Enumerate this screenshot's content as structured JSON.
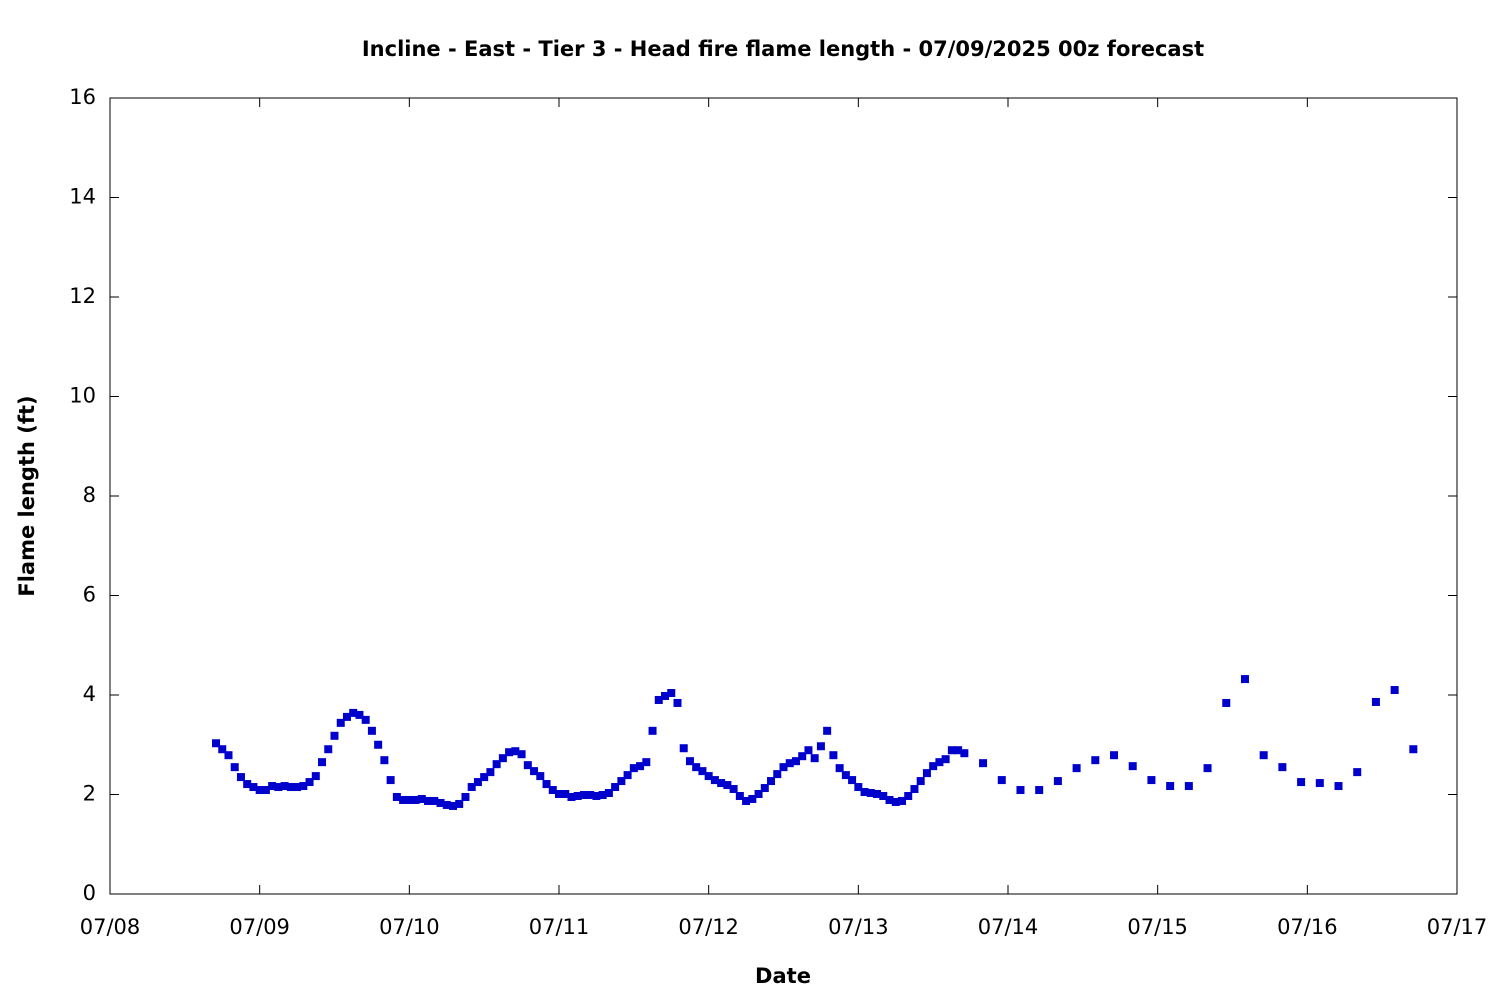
{
  "chart_data": {
    "type": "scatter",
    "title": "Incline - East - Tier 3 - Head fire flame length - 07/09/2025 00z forecast",
    "xlabel": "Date",
    "ylabel": "Flame length (ft)",
    "xlim": [
      0,
      216
    ],
    "ylim": [
      0,
      16
    ],
    "xticks": [
      {
        "value": 0,
        "label": "07/08"
      },
      {
        "value": 24,
        "label": "07/09"
      },
      {
        "value": 48,
        "label": "07/10"
      },
      {
        "value": 72,
        "label": "07/11"
      },
      {
        "value": 96,
        "label": "07/12"
      },
      {
        "value": 120,
        "label": "07/13"
      },
      {
        "value": 144,
        "label": "07/14"
      },
      {
        "value": 168,
        "label": "07/15"
      },
      {
        "value": 192,
        "label": "07/16"
      },
      {
        "value": 216,
        "label": "07/17"
      }
    ],
    "yticks": [
      0,
      2,
      4,
      6,
      8,
      10,
      12,
      14,
      16
    ],
    "color": "#0000cc",
    "x": [
      17,
      18,
      19,
      20,
      21,
      22,
      23,
      24,
      25,
      26,
      27,
      28,
      29,
      30,
      31,
      32,
      33,
      34,
      35,
      36,
      37,
      38,
      39,
      40,
      41,
      42,
      43,
      44,
      45,
      46,
      47,
      48,
      49,
      50,
      51,
      52,
      53,
      54,
      55,
      56,
      57,
      58,
      59,
      60,
      61,
      62,
      63,
      64,
      65,
      66,
      67,
      68,
      69,
      70,
      71,
      72,
      73,
      74,
      75,
      76,
      77,
      78,
      79,
      80,
      81,
      82,
      83,
      84,
      85,
      86,
      87,
      88,
      89,
      90,
      91,
      92,
      93,
      94,
      95,
      96,
      97,
      98,
      99,
      100,
      101,
      102,
      103,
      104,
      105,
      106,
      107,
      108,
      109,
      110,
      111,
      112,
      113,
      114,
      115,
      116,
      117,
      118,
      119,
      120,
      121,
      122,
      123,
      124,
      125,
      126,
      127,
      128,
      129,
      130,
      131,
      132,
      133,
      134,
      135,
      136,
      137,
      140,
      143,
      146,
      149,
      152,
      155,
      158,
      161,
      164,
      167,
      170,
      173,
      176,
      179,
      182,
      185,
      188,
      191,
      194,
      197,
      200,
      203,
      206,
      209
    ],
    "values": [
      3.03,
      2.91,
      2.79,
      2.55,
      2.35,
      2.21,
      2.15,
      2.09,
      2.09,
      2.17,
      2.15,
      2.17,
      2.15,
      2.15,
      2.17,
      2.25,
      2.37,
      2.65,
      2.91,
      3.18,
      3.44,
      3.56,
      3.64,
      3.6,
      3.5,
      3.28,
      3.0,
      2.69,
      2.29,
      1.95,
      1.89,
      1.89,
      1.89,
      1.91,
      1.87,
      1.87,
      1.83,
      1.79,
      1.77,
      1.81,
      1.95,
      2.15,
      2.25,
      2.35,
      2.45,
      2.61,
      2.73,
      2.85,
      2.87,
      2.81,
      2.59,
      2.47,
      2.37,
      2.21,
      2.09,
      2.01,
      2.01,
      1.95,
      1.97,
      1.99,
      1.99,
      1.97,
      1.99,
      2.03,
      2.15,
      2.27,
      2.39,
      2.53,
      2.57,
      2.65,
      3.28,
      3.9,
      3.98,
      4.04,
      3.84,
      2.93,
      2.67,
      2.55,
      2.47,
      2.37,
      2.29,
      2.23,
      2.19,
      2.11,
      1.97,
      1.87,
      1.91,
      2.01,
      2.13,
      2.27,
      2.41,
      2.55,
      2.63,
      2.67,
      2.77,
      2.89,
      2.73,
      2.97,
      3.28,
      2.79,
      2.53,
      2.39,
      2.29,
      2.15,
      2.05,
      2.03,
      2.01,
      1.97,
      1.89,
      1.85,
      1.87,
      1.97,
      2.11,
      2.27,
      2.43,
      2.57,
      2.65,
      2.71,
      2.89,
      2.89,
      2.83,
      2.63,
      2.29,
      2.09,
      2.09,
      2.27,
      2.53,
      2.69,
      2.79,
      2.57,
      2.29,
      2.17,
      2.17,
      2.53,
      3.84,
      4.32,
      2.79,
      2.55,
      2.25,
      2.23,
      2.17,
      2.45,
      3.86,
      4.1,
      2.91
    ]
  }
}
